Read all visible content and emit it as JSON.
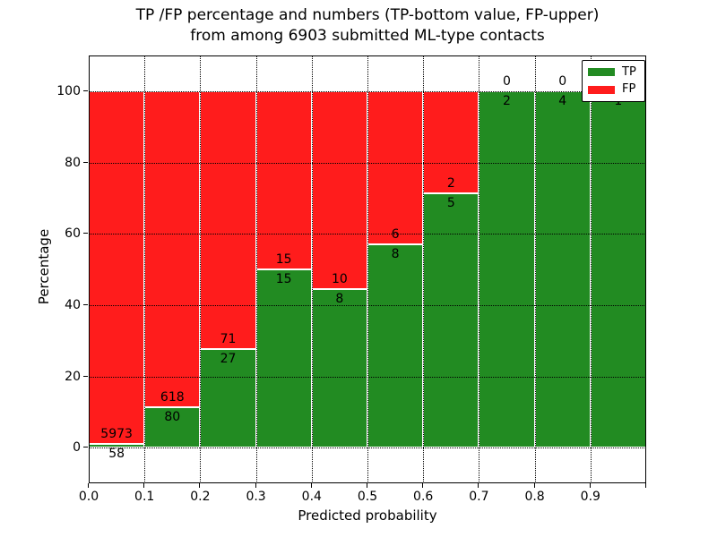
{
  "title": {
    "line1": "TP /FP percentage and numbers (TP-bottom value, FP-upper)",
    "line2": "from among 6903 submitted ML-type contacts"
  },
  "chart_data": {
    "type": "bar",
    "stacked": true,
    "title": "TP /FP percentage and numbers (TP-bottom value, FP-upper) from among 6903 submitted ML-type contacts",
    "xlabel": "Predicted probability",
    "ylabel": "Percentage",
    "xlim": [
      0.0,
      1.0
    ],
    "ylim": [
      -10,
      110
    ],
    "bin_width": 0.1,
    "total_contacts": 6903,
    "categories": [
      "0.0-0.1",
      "0.1-0.2",
      "0.2-0.3",
      "0.3-0.4",
      "0.4-0.5",
      "0.5-0.6",
      "0.6-0.7",
      "0.7-0.8",
      "0.8-0.9",
      "0.9-1.0"
    ],
    "series": [
      {
        "name": "TP",
        "color": "#228b22",
        "counts": [
          58,
          80,
          27,
          15,
          8,
          8,
          5,
          2,
          4,
          1
        ]
      },
      {
        "name": "FP",
        "color": "#ff1c1c",
        "counts": [
          5973,
          618,
          71,
          15,
          10,
          6,
          2,
          0,
          0,
          0
        ]
      }
    ],
    "tp_percent": [
      0.96,
      11.46,
      27.55,
      50.0,
      44.44,
      57.14,
      71.43,
      100.0,
      100.0,
      100.0
    ],
    "xticks": [
      "0.0",
      "0.1",
      "0.2",
      "0.3",
      "0.4",
      "0.5",
      "0.6",
      "0.7",
      "0.8",
      "0.9"
    ],
    "yticks": [
      0,
      20,
      40,
      60,
      80,
      100
    ],
    "grid": "dotted",
    "legend": {
      "position": "upper-right",
      "entries": [
        {
          "label": "TP",
          "color": "#228b22"
        },
        {
          "label": "FP",
          "color": "#ff1c1c"
        }
      ]
    }
  },
  "colors": {
    "tp_green": "#228b22",
    "fp_red": "#ff1c1c",
    "background": "#ffffff",
    "grid": "#000000",
    "text": "#000000"
  }
}
